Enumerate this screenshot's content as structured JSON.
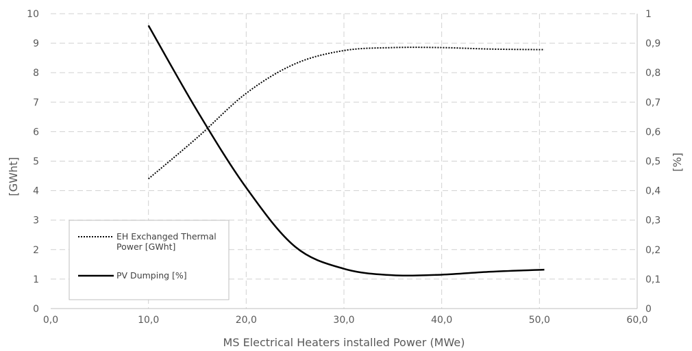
{
  "chart_data": {
    "type": "line",
    "title": "",
    "xlabel": "MS Electrical Heaters installed Power (MWe)",
    "ylabel_left": "[GWht]",
    "ylabel_right": "[%]",
    "xlim": [
      0,
      60
    ],
    "ylim_left": [
      0,
      10
    ],
    "ylim_right": [
      0,
      1
    ],
    "x_ticks": [
      "0,0",
      "10,0",
      "20,0",
      "30,0",
      "40,0",
      "50,0",
      "60,0"
    ],
    "y_left_ticks": [
      "0",
      "1",
      "2",
      "3",
      "4",
      "5",
      "6",
      "7",
      "8",
      "9",
      "10"
    ],
    "y_right_ticks": [
      "0",
      "0,1",
      "0,2",
      "0,3",
      "0,4",
      "0,5",
      "0,6",
      "0,7",
      "0,8",
      "0,9",
      "1"
    ],
    "grid": true,
    "legend_position": "bottom-left",
    "series": [
      {
        "name": "EH Exchanged Thermal Power [GWht]",
        "axis": "left",
        "style": "dotted",
        "color": "#000000",
        "x": [
          10,
          15,
          20,
          25,
          30,
          35,
          40,
          45,
          50.5
        ],
        "values": [
          4.4,
          5.8,
          7.3,
          8.3,
          8.75,
          8.85,
          8.85,
          8.8,
          8.78
        ]
      },
      {
        "name": "PV Dumping [%]",
        "axis": "right",
        "style": "solid",
        "color": "#000000",
        "x": [
          10,
          15,
          20,
          25,
          30,
          35,
          40,
          45,
          50.5
        ],
        "values": [
          0.96,
          0.67,
          0.41,
          0.21,
          0.135,
          0.113,
          0.115,
          0.125,
          0.132
        ]
      }
    ]
  }
}
